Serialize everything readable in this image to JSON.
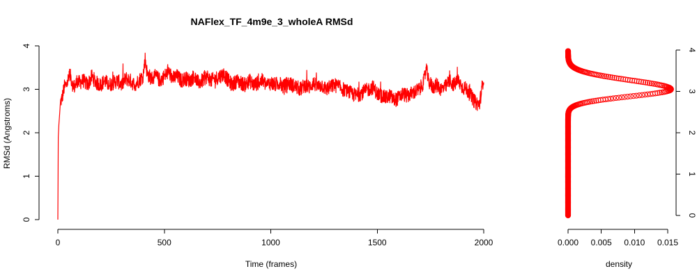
{
  "chart_data": [
    {
      "type": "line",
      "title": "NAFlex_TF_4m9e_3_wholeA RMSd",
      "xlabel": "Time (frames)",
      "ylabel": "RMSd (Angstroms)",
      "xlim": [
        0,
        2000
      ],
      "ylim": [
        0,
        4
      ],
      "x_ticks": [
        "0",
        "500",
        "1000",
        "1500",
        "2000"
      ],
      "y_ticks": [
        "0",
        "1",
        "2",
        "3",
        "4"
      ],
      "grid": false,
      "color": "#ff0000",
      "series": [
        {
          "x": [
            0,
            2,
            5,
            8,
            12,
            20,
            30,
            40,
            50,
            60,
            70,
            80,
            90,
            100,
            120,
            140,
            160,
            180,
            200,
            220,
            240,
            260,
            280,
            300,
            320,
            340,
            360,
            380,
            400,
            410,
            420,
            440,
            460,
            480,
            500,
            520,
            540,
            560,
            580,
            600,
            620,
            640,
            660,
            680,
            700,
            720,
            740,
            760,
            780,
            800,
            820,
            840,
            860,
            880,
            900,
            920,
            940,
            960,
            980,
            1000,
            1020,
            1040,
            1060,
            1080,
            1100,
            1120,
            1140,
            1160,
            1180,
            1200,
            1220,
            1240,
            1260,
            1280,
            1300,
            1320,
            1340,
            1360,
            1380,
            1400,
            1420,
            1440,
            1460,
            1480,
            1500,
            1520,
            1540,
            1560,
            1580,
            1600,
            1620,
            1640,
            1660,
            1680,
            1700,
            1720,
            1730,
            1740,
            1760,
            1780,
            1800,
            1820,
            1840,
            1860,
            1880,
            1900,
            1920,
            1940,
            1960,
            1980,
            2000
          ],
          "y": [
            0.0,
            1.9,
            2.2,
            2.4,
            2.7,
            2.8,
            3.05,
            3.1,
            3.25,
            3.3,
            3.1,
            3.05,
            3.2,
            3.15,
            3.2,
            3.1,
            3.3,
            3.15,
            3.1,
            3.2,
            3.1,
            3.15,
            3.2,
            3.1,
            3.25,
            3.2,
            3.1,
            3.2,
            3.3,
            3.7,
            3.35,
            3.25,
            3.3,
            3.2,
            3.3,
            3.4,
            3.25,
            3.3,
            3.2,
            3.25,
            3.2,
            3.3,
            3.15,
            3.2,
            3.3,
            3.2,
            3.25,
            3.3,
            3.35,
            3.2,
            3.1,
            3.2,
            3.15,
            3.1,
            3.2,
            3.1,
            3.15,
            3.2,
            3.1,
            3.15,
            3.1,
            3.15,
            3.05,
            3.15,
            3.1,
            3.05,
            3.0,
            3.1,
            3.05,
            3.15,
            3.05,
            3.1,
            3.0,
            3.05,
            3.1,
            3.05,
            3.0,
            2.95,
            2.9,
            2.85,
            2.9,
            2.95,
            3.0,
            3.05,
            2.9,
            2.85,
            2.8,
            2.85,
            2.75,
            2.8,
            2.9,
            2.85,
            2.9,
            2.95,
            3.0,
            3.2,
            3.5,
            3.2,
            3.05,
            3.1,
            3.0,
            3.05,
            3.2,
            3.1,
            3.2,
            3.05,
            3.0,
            2.85,
            2.7,
            2.65,
            3.3
          ]
        }
      ]
    },
    {
      "type": "scatter",
      "title": "",
      "xlabel": "density",
      "ylabel": "",
      "xlim": [
        0,
        0.015
      ],
      "ylim": [
        0,
        4
      ],
      "x_ticks": [
        "0.000",
        "0.005",
        "0.010",
        "0.015"
      ],
      "y_ticks": [
        "0",
        "1",
        "2",
        "3",
        "4"
      ],
      "y_axis_side": "right",
      "grid": false,
      "color": "#ff0000",
      "marker": "open-circle",
      "peak_y": 3.05,
      "peak_density": 0.0155
    }
  ]
}
